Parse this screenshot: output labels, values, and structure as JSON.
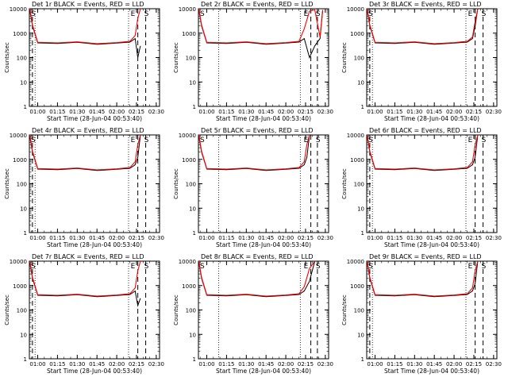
{
  "figure": {
    "title_suffix": "BLACK = Events, RED = LLD",
    "ylabel": "Counts/sec",
    "xlabel": "Start Time (28-Jun-04 00:53:40)",
    "x_tick_labels": [
      "01:00",
      "01:15",
      "01:30",
      "01:45",
      "02:00",
      "02:15",
      "02:30"
    ],
    "y_tick_labels": [
      "1",
      "10",
      "100",
      "1000",
      "10000"
    ],
    "marker_left": "S",
    "marker_e": "E",
    "marker_s": "S"
  },
  "colors": {
    "events": "#000000",
    "lld": "#ff0000"
  },
  "chart_data": [
    {
      "type": "line",
      "title": "Det 1r BLACK = Events, RED = LLD",
      "xlabel": "Start Time (28-Jun-04 00:53:40)",
      "ylabel": "Counts/sec",
      "x_axis": "time",
      "y_scale": "log",
      "ylim": [
        1,
        10000
      ],
      "xlim": [
        "00:53:40",
        "02:32:30"
      ],
      "x": [
        "00:54",
        "00:56",
        "01:00",
        "01:15",
        "01:30",
        "01:45",
        "02:00",
        "02:10",
        "02:14",
        "02:16",
        "02:18"
      ],
      "series": [
        {
          "name": "Events",
          "values": [
            9000,
            2000,
            400,
            380,
            420,
            350,
            390,
            430,
            600,
            100,
            300
          ]
        },
        {
          "name": "LLD",
          "values": [
            10000,
            2200,
            420,
            400,
            440,
            370,
            410,
            460,
            800,
            4000,
            10000
          ]
        }
      ],
      "vlines_dotted": [
        "00:58",
        "02:09"
      ],
      "vlines_dashed": [
        "00:56",
        "02:16",
        "02:22"
      ]
    },
    {
      "type": "line",
      "title": "Det 2r BLACK = Events, RED = LLD",
      "xlabel": "Start Time (28-Jun-04 00:53:40)",
      "ylabel": "Counts/sec",
      "x_axis": "time",
      "y_scale": "log",
      "ylim": [
        1,
        10000
      ],
      "xlim": [
        "00:53:40",
        "02:32:30"
      ],
      "x": [
        "00:54",
        "00:56",
        "01:00",
        "01:15",
        "01:30",
        "01:45",
        "02:00",
        "02:10",
        "02:14",
        "02:18",
        "02:22",
        "02:26",
        "02:28"
      ],
      "series": [
        {
          "name": "Events",
          "values": [
            9000,
            2000,
            400,
            380,
            420,
            350,
            390,
            430,
            600,
            100,
            300,
            600,
            8000
          ]
        },
        {
          "name": "LLD",
          "values": [
            10000,
            2200,
            420,
            400,
            440,
            370,
            410,
            460,
            1500,
            8000,
            9000,
            700,
            9000
          ]
        }
      ],
      "vlines_dotted": [
        "01:09",
        "02:11"
      ],
      "vlines_dashed": [
        "02:19",
        "02:24"
      ]
    },
    {
      "type": "line",
      "title": "Det 3r BLACK = Events, RED = LLD",
      "xlabel": "Start Time (28-Jun-04 00:53:40)",
      "ylabel": "Counts/sec",
      "x_axis": "time",
      "y_scale": "log",
      "ylim": [
        1,
        10000
      ],
      "xlim": [
        "00:53:40",
        "02:32:30"
      ],
      "x": [
        "00:54",
        "00:56",
        "01:00",
        "01:15",
        "01:30",
        "01:45",
        "02:00",
        "02:10",
        "02:14",
        "02:16",
        "02:18"
      ],
      "series": [
        {
          "name": "Events",
          "values": [
            9000,
            2000,
            400,
            380,
            420,
            350,
            390,
            430,
            600,
            2000,
            10000
          ]
        },
        {
          "name": "LLD",
          "values": [
            10000,
            2200,
            420,
            400,
            440,
            370,
            410,
            460,
            700,
            3000,
            10000
          ]
        }
      ],
      "vlines_dotted": [
        "00:58",
        "02:09"
      ],
      "vlines_dashed": [
        "00:56",
        "02:16",
        "02:22"
      ]
    },
    {
      "type": "line",
      "title": "Det 4r BLACK = Events, RED = LLD",
      "xlabel": "Start Time (28-Jun-04 00:53:40)",
      "ylabel": "Counts/sec",
      "x_axis": "time",
      "y_scale": "log",
      "ylim": [
        1,
        10000
      ],
      "xlim": [
        "00:53:40",
        "02:32:30"
      ],
      "x": [
        "00:54",
        "00:56",
        "01:00",
        "01:15",
        "01:30",
        "01:45",
        "02:00",
        "02:10",
        "02:14",
        "02:16",
        "02:18"
      ],
      "series": [
        {
          "name": "Events",
          "values": [
            9000,
            2000,
            400,
            380,
            420,
            350,
            390,
            430,
            600,
            1200,
            10000
          ]
        },
        {
          "name": "LLD",
          "values": [
            10000,
            2200,
            420,
            400,
            440,
            370,
            410,
            460,
            800,
            4000,
            10000
          ]
        }
      ],
      "vlines_dotted": [
        "00:58",
        "02:09"
      ],
      "vlines_dashed": [
        "00:56",
        "02:16",
        "02:22"
      ]
    },
    {
      "type": "line",
      "title": "Det 5r BLACK = Events, RED = LLD",
      "xlabel": "Start Time (28-Jun-04 00:53:40)",
      "ylabel": "Counts/sec",
      "x_axis": "time",
      "y_scale": "log",
      "ylim": [
        1,
        10000
      ],
      "xlim": [
        "00:53:40",
        "02:32:30"
      ],
      "x": [
        "00:54",
        "00:56",
        "01:00",
        "01:15",
        "01:30",
        "01:45",
        "02:00",
        "02:10",
        "02:14",
        "02:16",
        "02:18"
      ],
      "series": [
        {
          "name": "Events",
          "values": [
            9000,
            2000,
            400,
            380,
            420,
            350,
            390,
            430,
            600,
            1200,
            10000
          ]
        },
        {
          "name": "LLD",
          "values": [
            10000,
            2200,
            420,
            400,
            440,
            370,
            410,
            460,
            800,
            4000,
            10000
          ]
        }
      ],
      "vlines_dotted": [
        "01:09",
        "02:11"
      ],
      "vlines_dashed": [
        "02:19",
        "02:24"
      ]
    },
    {
      "type": "line",
      "title": "Det 6r BLACK = Events, RED = LLD",
      "xlabel": "Start Time (28-Jun-04 00:53:40)",
      "ylabel": "Counts/sec",
      "x_axis": "time",
      "y_scale": "log",
      "ylim": [
        1,
        10000
      ],
      "xlim": [
        "00:53:40",
        "02:32:30"
      ],
      "x": [
        "00:54",
        "00:56",
        "01:00",
        "01:15",
        "01:30",
        "01:45",
        "02:00",
        "02:10",
        "02:14",
        "02:16",
        "02:18"
      ],
      "series": [
        {
          "name": "Events",
          "values": [
            9000,
            2000,
            400,
            380,
            420,
            350,
            390,
            430,
            600,
            1200,
            10000
          ]
        },
        {
          "name": "LLD",
          "values": [
            10000,
            2200,
            420,
            400,
            440,
            370,
            410,
            460,
            800,
            4000,
            10000
          ]
        }
      ],
      "vlines_dotted": [
        "00:58",
        "02:09"
      ],
      "vlines_dashed": [
        "00:56",
        "02:16",
        "02:22"
      ]
    },
    {
      "type": "line",
      "title": "Det 7r BLACK = Events, RED = LLD",
      "xlabel": "Start Time (28-Jun-04 00:53:40)",
      "ylabel": "Counts/sec",
      "x_axis": "time",
      "y_scale": "log",
      "ylim": [
        1,
        10000
      ],
      "xlim": [
        "00:53:40",
        "02:32:30"
      ],
      "x": [
        "00:54",
        "00:56",
        "01:00",
        "01:15",
        "01:30",
        "01:45",
        "02:00",
        "02:10",
        "02:14",
        "02:16",
        "02:18"
      ],
      "series": [
        {
          "name": "Events",
          "values": [
            9000,
            2000,
            400,
            380,
            420,
            350,
            390,
            430,
            600,
            150,
            300
          ]
        },
        {
          "name": "LLD",
          "values": [
            10000,
            2200,
            420,
            400,
            440,
            370,
            410,
            460,
            800,
            4000,
            10000
          ]
        }
      ],
      "vlines_dotted": [
        "00:58",
        "02:09"
      ],
      "vlines_dashed": [
        "00:56",
        "02:16",
        "02:22"
      ]
    },
    {
      "type": "line",
      "title": "Det 8r BLACK = Events, RED = LLD",
      "xlabel": "Start Time (28-Jun-04 00:53:40)",
      "ylabel": "Counts/sec",
      "x_axis": "time",
      "y_scale": "log",
      "ylim": [
        1,
        10000
      ],
      "xlim": [
        "00:53:40",
        "02:32:30"
      ],
      "x": [
        "00:54",
        "00:56",
        "01:00",
        "01:15",
        "01:30",
        "01:45",
        "02:00",
        "02:10",
        "02:14",
        "02:18",
        "02:22"
      ],
      "series": [
        {
          "name": "Events",
          "values": [
            9000,
            2000,
            400,
            380,
            420,
            350,
            390,
            430,
            600,
            1500,
            10000
          ]
        },
        {
          "name": "LLD",
          "values": [
            10000,
            2200,
            420,
            400,
            440,
            370,
            410,
            460,
            900,
            5000,
            10000
          ]
        }
      ],
      "vlines_dotted": [
        "01:09",
        "02:11"
      ],
      "vlines_dashed": [
        "02:19",
        "02:24"
      ]
    },
    {
      "type": "line",
      "title": "Det 9r BLACK = Events, RED = LLD",
      "xlabel": "Start Time (28-Jun-04 00:53:40)",
      "ylabel": "Counts/sec",
      "x_axis": "time",
      "y_scale": "log",
      "ylim": [
        1,
        10000
      ],
      "xlim": [
        "00:53:40",
        "02:32:30"
      ],
      "x": [
        "00:54",
        "00:56",
        "01:00",
        "01:15",
        "01:30",
        "01:45",
        "02:00",
        "02:10",
        "02:14",
        "02:16",
        "02:18"
      ],
      "series": [
        {
          "name": "Events",
          "values": [
            9000,
            2000,
            400,
            380,
            420,
            350,
            390,
            430,
            600,
            1200,
            10000
          ]
        },
        {
          "name": "LLD",
          "values": [
            10000,
            2200,
            420,
            400,
            440,
            370,
            410,
            460,
            800,
            4000,
            10000
          ]
        }
      ],
      "vlines_dotted": [
        "00:58",
        "02:09"
      ],
      "vlines_dashed": [
        "00:56",
        "02:16",
        "02:22"
      ]
    }
  ]
}
